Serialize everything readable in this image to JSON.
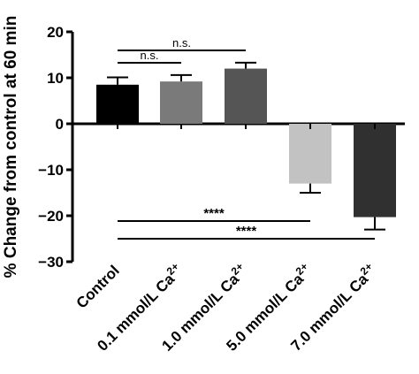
{
  "chart_data": {
    "type": "bar",
    "ylabel": "% Change from control at 60 min",
    "ylim": [
      -30,
      20
    ],
    "yticks": [
      20,
      10,
      0,
      -10,
      -20,
      -30
    ],
    "ytick_labels": [
      "20",
      "10",
      "0",
      "−10",
      "−20",
      "−30"
    ],
    "categories": [
      {
        "base": "Control",
        "sup": ""
      },
      {
        "base": "0.1 mmol/L Ca",
        "sup": "2+"
      },
      {
        "base": "1.0 mmol/L Ca",
        "sup": "2+"
      },
      {
        "base": "5.0 mmol/L Ca",
        "sup": "2+"
      },
      {
        "base": "7.0 mmol/L Ca",
        "sup": "2+"
      }
    ],
    "values": [
      8.5,
      9.2,
      12.0,
      -13.0,
      -20.3
    ],
    "errors": [
      1.6,
      1.4,
      1.3,
      2.0,
      2.7
    ],
    "colors": [
      "#000000",
      "#7a7a7a",
      "#555555",
      "#c2c2c2",
      "#303030"
    ],
    "significance": [
      {
        "from": 0,
        "to": 1,
        "label": "n.s."
      },
      {
        "from": 0,
        "to": 2,
        "label": "n.s."
      },
      {
        "from": 0,
        "to": 3,
        "label": "****"
      },
      {
        "from": 0,
        "to": 4,
        "label": "****"
      }
    ],
    "grid": false
  }
}
